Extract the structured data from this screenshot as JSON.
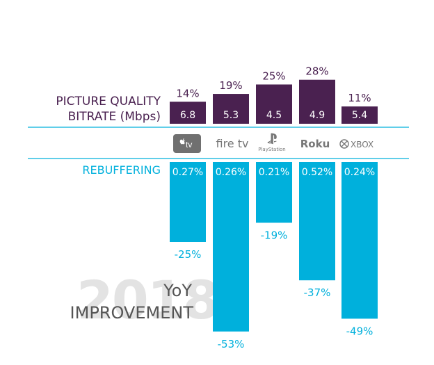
{
  "chart_data": {
    "type": "bar",
    "categories": [
      "Apple TV",
      "Fire TV",
      "PlayStation",
      "Roku",
      "Xbox"
    ],
    "series": [
      {
        "name": "PICTURE QUALITY BITRATE (Mbps)",
        "values": [
          6.8,
          5.3,
          4.5,
          4.9,
          5.4
        ],
        "yoy_improvement_pct": [
          14,
          19,
          25,
          28,
          11
        ],
        "yoy_labels": [
          "14%",
          "19%",
          "25%",
          "28%",
          "11%"
        ],
        "value_labels": [
          "6.8",
          "5.3",
          "4.5",
          "4.9",
          "5.4"
        ]
      },
      {
        "name": "REBUFFERING",
        "values": [
          0.27,
          0.26,
          0.21,
          0.52,
          0.24
        ],
        "value_labels": [
          "0.27%",
          "0.26%",
          "0.21%",
          "0.52%",
          "0.24%"
        ],
        "yoy_improvement_pct": [
          -25,
          -53,
          -19,
          -37,
          -49
        ],
        "yoy_labels": [
          "-25%",
          "-53%",
          "-19%",
          "-37%",
          "-49%"
        ]
      }
    ],
    "labels": {
      "quality_line1": "PICTURE QUALITY",
      "quality_line2": "BITRATE (Mbps)",
      "rebuffering": "REBUFFERING",
      "year_watermark": "2018",
      "yoy_line1": "YoY",
      "yoy_line2": "IMPROVEMENT"
    },
    "logos": {
      "apple_tv": "tv",
      "fire_tv": "fire tv",
      "playstation": "PlayStation",
      "roku": "Roku",
      "xbox": "XBOX"
    },
    "colors": {
      "quality_bar": "#4a2150",
      "rebuffering_bar": "#00b0dc",
      "quality_text": "#4a2150",
      "rebuffering_text": "#00b0dc",
      "divider": "#00b0dc",
      "watermark": "#e3e3e3",
      "yoy_text": "#555555",
      "logo_gray": "#777777"
    }
  }
}
